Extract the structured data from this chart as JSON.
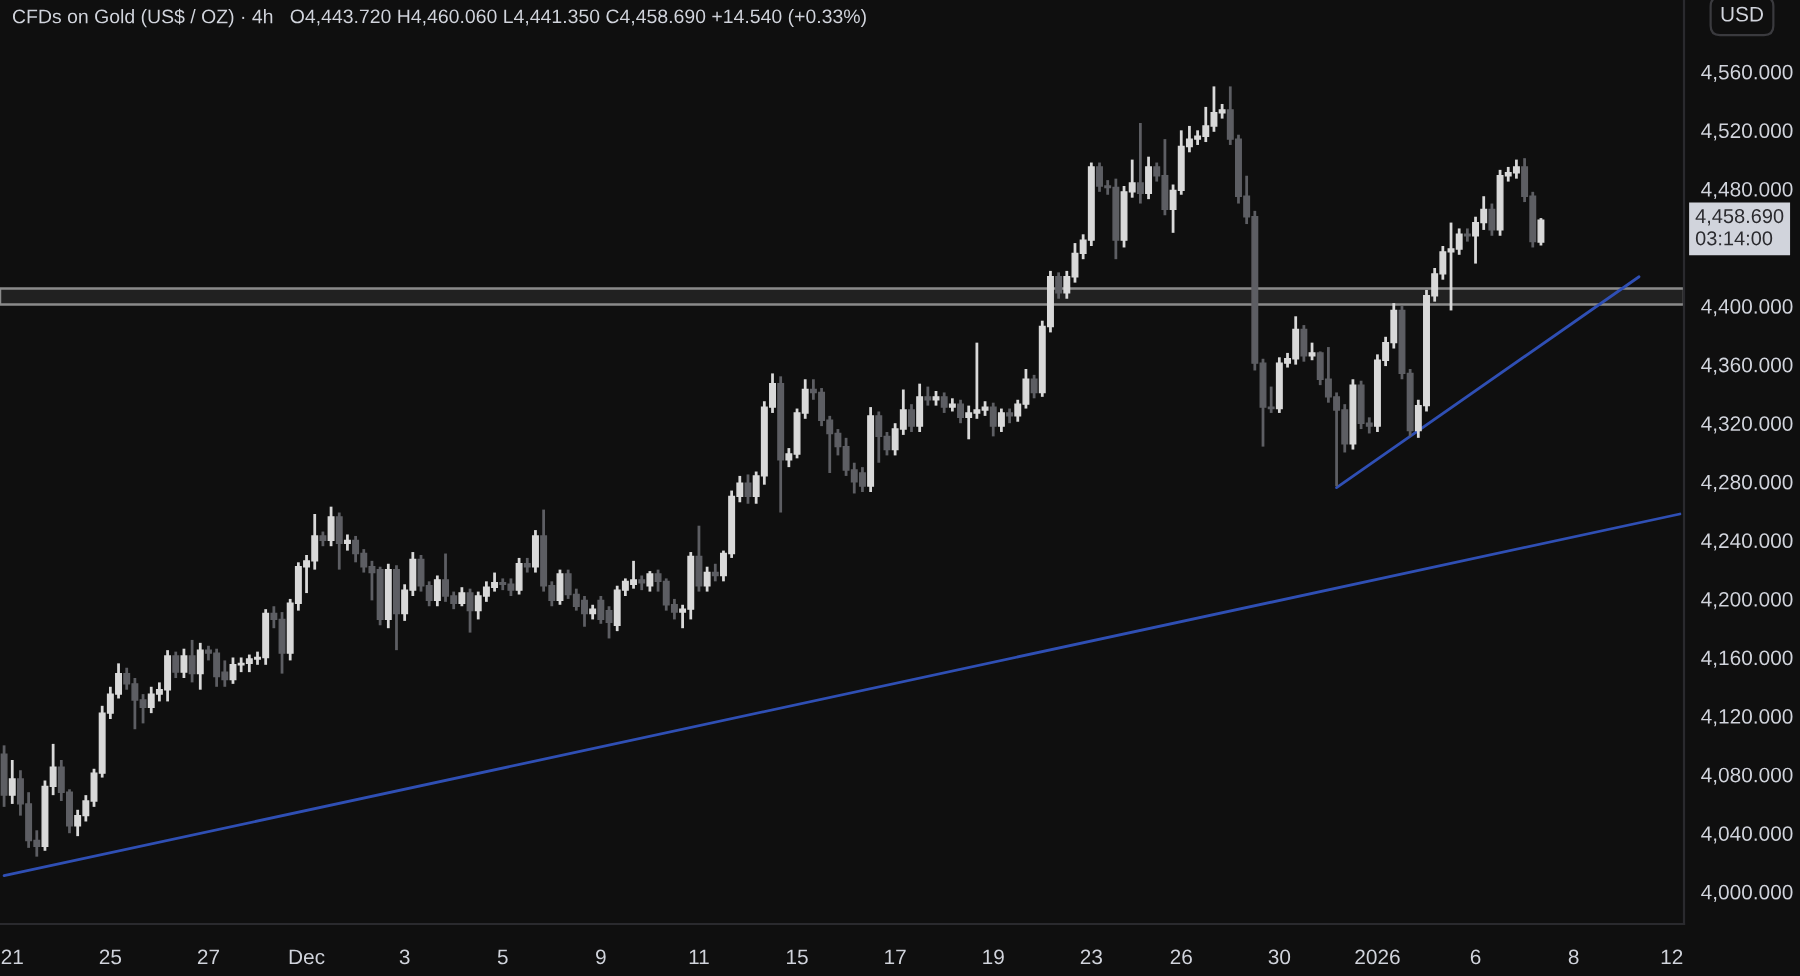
{
  "chart_data": {
    "type": "candlestick",
    "title": "CFDs on Gold (US$ / OZ) · 4h",
    "subtitle": "O4,443.720 H4,460.060 L4,441.350 C4,458.690 +14.540 (+0.33%)",
    "ylabel": "USD",
    "categories": [
      null,
      "21",
      null,
      null,
      null,
      null,
      null,
      null,
      null,
      null,
      null,
      null,
      null,
      "25",
      null,
      null,
      null,
      null,
      null,
      null,
      null,
      null,
      null,
      null,
      null,
      "27",
      null,
      null,
      null,
      null,
      null,
      null,
      null,
      null,
      null,
      null,
      null,
      "Dec",
      null,
      null,
      null,
      null,
      null,
      null,
      null,
      null,
      null,
      null,
      null,
      "3",
      null,
      null,
      null,
      null,
      null,
      null,
      null,
      null,
      null,
      null,
      null,
      "5",
      null,
      null,
      null,
      null,
      null,
      null,
      null,
      null,
      null,
      null,
      null,
      "9",
      null,
      null,
      null,
      null,
      null,
      null,
      null,
      null,
      null,
      null,
      null,
      "11",
      null,
      null,
      null,
      null,
      null,
      null,
      null,
      null,
      null,
      null,
      null,
      "15",
      null,
      null,
      null,
      null,
      null,
      null,
      null,
      null,
      null,
      null,
      null,
      "17",
      null,
      null,
      null,
      null,
      null,
      null,
      null,
      null,
      null,
      null,
      null,
      "19",
      null,
      null,
      null,
      null,
      null,
      null,
      null,
      null,
      null,
      null,
      null,
      "23",
      null,
      null,
      null,
      null,
      null,
      null,
      null,
      null,
      null,
      null,
      "26",
      null,
      null,
      null,
      null,
      null,
      null,
      null,
      null,
      null,
      null,
      null,
      "30",
      null,
      null,
      null,
      null,
      null,
      null,
      null,
      null,
      null,
      null,
      null,
      "2026",
      null,
      null,
      null,
      null,
      null,
      null,
      null,
      null,
      null,
      null,
      null,
      "6",
      null,
      null,
      null,
      null,
      null,
      null,
      null,
      null,
      null,
      null,
      null,
      "8",
      null,
      null,
      null,
      null,
      null,
      null,
      null,
      null,
      null,
      null,
      null,
      "12",
      null
    ],
    "ohlc": [
      [
        4094,
        4100,
        4058,
        4066
      ],
      [
        4066,
        4090,
        4060,
        4077
      ],
      [
        4077,
        4083,
        4052,
        4060
      ],
      [
        4060,
        4068,
        4030,
        4035
      ],
      [
        4035,
        4042,
        4024,
        4031
      ],
      [
        4031,
        4076,
        4028,
        4072
      ],
      [
        4072,
        4101,
        4066,
        4085
      ],
      [
        4085,
        4090,
        4062,
        4068
      ],
      [
        4068,
        4070,
        4040,
        4045
      ],
      [
        4045,
        4056,
        4038,
        4052
      ],
      [
        4052,
        4066,
        4048,
        4062
      ],
      [
        4062,
        4084,
        4058,
        4081
      ],
      [
        4081,
        4127,
        4078,
        4122
      ],
      [
        4122,
        4140,
        4118,
        4135
      ],
      [
        4135,
        4156,
        4132,
        4149
      ],
      [
        4149,
        4153,
        4138,
        4142
      ],
      [
        4142,
        4146,
        4111,
        4131
      ],
      [
        4131,
        4135,
        4115,
        4126
      ],
      [
        4126,
        4140,
        4122,
        4135
      ],
      [
        4135,
        4143,
        4130,
        4138
      ],
      [
        4138,
        4165,
        4130,
        4161
      ],
      [
        4161,
        4164,
        4146,
        4150
      ],
      [
        4150,
        4166,
        4146,
        4161
      ],
      [
        4161,
        4172,
        4143,
        4149
      ],
      [
        4149,
        4170,
        4138,
        4165
      ],
      [
        4165,
        4168,
        4158,
        4163
      ],
      [
        4163,
        4166,
        4140,
        4147
      ],
      [
        4150,
        4158,
        4140,
        4145
      ],
      [
        4145,
        4160,
        4142,
        4155
      ],
      [
        4155,
        4160,
        4150,
        4156
      ],
      [
        4156,
        4162,
        4150,
        4159
      ],
      [
        4159,
        4164,
        4155,
        4160
      ],
      [
        4160,
        4193,
        4155,
        4190
      ],
      [
        4190,
        4195,
        4180,
        4186
      ],
      [
        4186,
        4191,
        4149,
        4163
      ],
      [
        4163,
        4200,
        4158,
        4197
      ],
      [
        4197,
        4225,
        4192,
        4222
      ],
      [
        4222,
        4230,
        4204,
        4226
      ],
      [
        4226,
        4258,
        4220,
        4243
      ],
      [
        4243,
        4246,
        4236,
        4240
      ],
      [
        4240,
        4263,
        4236,
        4256
      ],
      [
        4256,
        4259,
        4220,
        4238
      ],
      [
        4238,
        4244,
        4233,
        4240
      ],
      [
        4240,
        4243,
        4225,
        4231
      ],
      [
        4231,
        4234,
        4218,
        4222
      ],
      [
        4222,
        4226,
        4199,
        4218
      ],
      [
        4220,
        4222,
        4182,
        4186
      ],
      [
        4186,
        4224,
        4180,
        4220
      ],
      [
        4220,
        4223,
        4165,
        4190
      ],
      [
        4190,
        4210,
        4185,
        4206
      ],
      [
        4206,
        4232,
        4202,
        4227
      ],
      [
        4227,
        4230,
        4205,
        4209
      ],
      [
        4209,
        4212,
        4195,
        4199
      ],
      [
        4199,
        4216,
        4195,
        4213
      ],
      [
        4213,
        4231,
        4198,
        4202
      ],
      [
        4202,
        4205,
        4193,
        4197
      ],
      [
        4197,
        4208,
        4195,
        4204
      ],
      [
        4204,
        4207,
        4177,
        4192
      ],
      [
        4192,
        4205,
        4186,
        4202
      ],
      [
        4202,
        4212,
        4198,
        4208
      ],
      [
        4208,
        4218,
        4205,
        4211
      ],
      [
        4211,
        4214,
        4206,
        4210
      ],
      [
        4210,
        4214,
        4202,
        4206
      ],
      [
        4206,
        4228,
        4203,
        4224
      ],
      [
        4224,
        4228,
        4218,
        4222
      ],
      [
        4222,
        4247,
        4218,
        4243
      ],
      [
        4243,
        4261,
        4205,
        4209
      ],
      [
        4209,
        4212,
        4195,
        4199
      ],
      [
        4199,
        4220,
        4196,
        4217
      ],
      [
        4217,
        4220,
        4200,
        4203
      ],
      [
        4203,
        4207,
        4192,
        4195
      ],
      [
        4199,
        4202,
        4181,
        4190
      ],
      [
        4190,
        4196,
        4186,
        4193
      ],
      [
        4199,
        4202,
        4183,
        4186
      ],
      [
        4192,
        4195,
        4173,
        4184
      ],
      [
        4182,
        4209,
        4178,
        4206
      ],
      [
        4206,
        4214,
        4202,
        4212
      ],
      [
        4210,
        4226,
        4207,
        4213
      ],
      [
        4213,
        4216,
        4206,
        4211
      ],
      [
        4209,
        4219,
        4205,
        4217
      ],
      [
        4217,
        4220,
        4205,
        4212
      ],
      [
        4212,
        4214,
        4192,
        4196
      ],
      [
        4196,
        4200,
        4186,
        4191
      ],
      [
        4191,
        4196,
        4180,
        4193
      ],
      [
        4193,
        4232,
        4186,
        4229
      ],
      [
        4229,
        4250,
        4205,
        4209
      ],
      [
        4209,
        4222,
        4205,
        4218
      ],
      [
        4218,
        4224,
        4212,
        4216
      ],
      [
        4216,
        4233,
        4212,
        4231
      ],
      [
        4231,
        4274,
        4228,
        4270
      ],
      [
        4270,
        4284,
        4266,
        4279
      ],
      [
        4279,
        4285,
        4265,
        4270
      ],
      [
        4270,
        4287,
        4265,
        4284
      ],
      [
        4284,
        4335,
        4278,
        4331
      ],
      [
        4331,
        4354,
        4327,
        4347
      ],
      [
        4347,
        4352,
        4259,
        4295
      ],
      [
        4295,
        4303,
        4290,
        4299
      ],
      [
        4299,
        4330,
        4296,
        4327
      ],
      [
        4327,
        4350,
        4323,
        4343
      ],
      [
        4343,
        4350,
        4336,
        4341
      ],
      [
        4341,
        4344,
        4318,
        4322
      ],
      [
        4322,
        4325,
        4286,
        4313
      ],
      [
        4313,
        4316,
        4298,
        4304
      ],
      [
        4304,
        4310,
        4284,
        4288
      ],
      [
        4288,
        4293,
        4272,
        4280
      ],
      [
        4286,
        4290,
        4273,
        4277
      ],
      [
        4277,
        4331,
        4273,
        4325
      ],
      [
        4325,
        4328,
        4293,
        4311
      ],
      [
        4311,
        4314,
        4298,
        4302
      ],
      [
        4302,
        4320,
        4298,
        4316
      ],
      [
        4316,
        4343,
        4312,
        4329
      ],
      [
        4329,
        4333,
        4314,
        4318
      ],
      [
        4318,
        4347,
        4314,
        4338
      ],
      [
        4338,
        4345,
        4332,
        4336
      ],
      [
        4336,
        4342,
        4332,
        4338
      ],
      [
        4338,
        4341,
        4327,
        4331
      ],
      [
        4331,
        4337,
        4328,
        4333
      ],
      [
        4333,
        4336,
        4320,
        4324
      ],
      [
        4324,
        4332,
        4309,
        4327
      ],
      [
        4327,
        4375,
        4323,
        4329
      ],
      [
        4329,
        4335,
        4325,
        4331
      ],
      [
        4331,
        4334,
        4311,
        4318
      ],
      [
        4318,
        4330,
        4314,
        4327
      ],
      [
        4327,
        4330,
        4320,
        4325
      ],
      [
        4325,
        4336,
        4321,
        4333
      ],
      [
        4333,
        4357,
        4330,
        4350
      ],
      [
        4350,
        4353,
        4337,
        4341
      ],
      [
        4341,
        4390,
        4338,
        4386
      ],
      [
        4386,
        4424,
        4382,
        4420
      ],
      [
        4420,
        4423,
        4405,
        4409
      ],
      [
        4409,
        4424,
        4405,
        4420
      ],
      [
        4420,
        4443,
        4416,
        4436
      ],
      [
        4436,
        4449,
        4432,
        4445
      ],
      [
        4445,
        4498,
        4441,
        4495
      ],
      [
        4495,
        4498,
        4478,
        4482
      ],
      [
        4482,
        4486,
        4476,
        4481
      ],
      [
        4481,
        4487,
        4432,
        4445
      ],
      [
        4445,
        4482,
        4440,
        4478
      ],
      [
        4478,
        4500,
        4474,
        4484
      ],
      [
        4484,
        4525,
        4470,
        4477
      ],
      [
        4477,
        4502,
        4473,
        4495
      ],
      [
        4495,
        4498,
        4485,
        4489
      ],
      [
        4489,
        4514,
        4462,
        4466
      ],
      [
        4466,
        4483,
        4450,
        4479
      ],
      [
        4479,
        4520,
        4476,
        4509
      ],
      [
        4509,
        4523,
        4505,
        4514
      ],
      [
        4514,
        4520,
        4510,
        4516
      ],
      [
        4516,
        4536,
        4512,
        4523
      ],
      [
        4523,
        4550,
        4519,
        4532
      ],
      [
        4532,
        4538,
        4528,
        4534
      ],
      [
        4534,
        4550,
        4510,
        4514
      ],
      [
        4514,
        4517,
        4470,
        4475
      ],
      [
        4475,
        4489,
        4456,
        4461
      ],
      [
        4461,
        4465,
        4356,
        4361
      ],
      [
        4361,
        4364,
        4304,
        4331
      ],
      [
        4331,
        4345,
        4327,
        4330
      ],
      [
        4330,
        4365,
        4327,
        4361
      ],
      [
        4361,
        4368,
        4358,
        4364
      ],
      [
        4364,
        4393,
        4360,
        4384
      ],
      [
        4384,
        4387,
        4362,
        4366
      ],
      [
        4366,
        4375,
        4363,
        4368
      ],
      [
        4368,
        4369,
        4346,
        4350
      ],
      [
        4350,
        4372,
        4334,
        4338
      ],
      [
        4338,
        4341,
        4277,
        4329
      ],
      [
        4329,
        4333,
        4300,
        4306
      ],
      [
        4306,
        4350,
        4302,
        4346
      ],
      [
        4346,
        4349,
        4316,
        4320
      ],
      [
        4320,
        4324,
        4313,
        4318
      ],
      [
        4318,
        4367,
        4314,
        4363
      ],
      [
        4363,
        4379,
        4359,
        4375
      ],
      [
        4375,
        4402,
        4371,
        4397
      ],
      [
        4397,
        4400,
        4350,
        4354
      ],
      [
        4354,
        4357,
        4311,
        4315
      ],
      [
        4315,
        4336,
        4310,
        4332
      ],
      [
        4332,
        4411,
        4328,
        4407
      ],
      [
        4407,
        4426,
        4403,
        4422
      ],
      [
        4422,
        4441,
        4418,
        4437
      ],
      [
        4437,
        4457,
        4397,
        4439
      ],
      [
        4439,
        4453,
        4435,
        4449
      ],
      [
        4449,
        4453,
        4444,
        4448
      ],
      [
        4448,
        4461,
        4429,
        4457
      ],
      [
        4457,
        4475,
        4452,
        4466
      ],
      [
        4466,
        4470,
        4448,
        4452
      ],
      [
        4452,
        4493,
        4448,
        4489
      ],
      [
        4489,
        4495,
        4485,
        4491
      ],
      [
        4491,
        4500,
        4487,
        4495
      ],
      [
        4495,
        4501,
        4471,
        4475
      ],
      [
        4475,
        4478,
        4440,
        4444
      ],
      [
        4443.72,
        4460.06,
        4441.35,
        4458.69
      ],
      null,
      null,
      null,
      null,
      null,
      null,
      null,
      null,
      null,
      null,
      null,
      null,
      null,
      null,
      null,
      null,
      null
    ],
    "colors": [
      "#5d5e63",
      "#d9d9d9",
      "#5d5e63",
      "#5d5e63",
      "#5d5e63",
      "#d9d9d9",
      "#d9d9d9",
      "#5d5e63",
      "#5d5e63",
      "#d9d9d9",
      "#d9d9d9",
      "#d9d9d9",
      "#d9d9d9",
      "#d9d9d9",
      "#d9d9d9",
      "#5d5e63",
      "#5d5e63",
      "#5d5e63",
      "#d9d9d9",
      "#d9d9d9",
      "#d9d9d9",
      "#5d5e63",
      "#d9d9d9",
      "#5d5e63",
      "#d9d9d9",
      "#5d5e63",
      "#5d5e63",
      "#5d5e63",
      "#d9d9d9",
      "#d9d9d9",
      "#d9d9d9",
      "#d9d9d9",
      "#d9d9d9",
      "#5d5e63",
      "#5d5e63",
      "#d9d9d9",
      "#d9d9d9",
      "#d9d9d9",
      "#d9d9d9",
      "#5d5e63",
      "#d9d9d9",
      "#5d5e63",
      "#d9d9d9",
      "#5d5e63",
      "#5d5e63",
      "#5d5e63",
      "#5d5e63",
      "#d9d9d9",
      "#5d5e63",
      "#d9d9d9",
      "#d9d9d9",
      "#5d5e63",
      "#5d5e63",
      "#d9d9d9",
      "#5d5e63",
      "#5d5e63",
      "#d9d9d9",
      "#5d5e63",
      "#d9d9d9",
      "#d9d9d9",
      "#d9d9d9",
      "#5d5e63",
      "#5d5e63",
      "#d9d9d9",
      "#5d5e63",
      "#d9d9d9",
      "#5d5e63",
      "#5d5e63",
      "#d9d9d9",
      "#5d5e63",
      "#5d5e63",
      "#5d5e63",
      "#d9d9d9",
      "#5d5e63",
      "#5d5e63",
      "#d9d9d9",
      "#d9d9d9",
      "#d9d9d9",
      "#5d5e63",
      "#d9d9d9",
      "#5d5e63",
      "#5d5e63",
      "#5d5e63",
      "#d9d9d9",
      "#d9d9d9",
      "#5d5e63",
      "#d9d9d9",
      "#5d5e63",
      "#d9d9d9",
      "#d9d9d9",
      "#d9d9d9",
      "#5d5e63",
      "#d9d9d9",
      "#d9d9d9",
      "#d9d9d9",
      "#5d5e63",
      "#d9d9d9",
      "#d9d9d9",
      "#d9d9d9",
      "#5d5e63",
      "#5d5e63",
      "#5d5e63",
      "#5d5e63",
      "#5d5e63",
      "#5d5e63",
      "#5d5e63",
      "#d9d9d9",
      "#5d5e63",
      "#5d5e63",
      "#d9d9d9",
      "#d9d9d9",
      "#5d5e63",
      "#d9d9d9",
      "#5d5e63",
      "#d9d9d9",
      "#5d5e63",
      "#d9d9d9",
      "#5d5e63",
      "#d9d9d9",
      "#d9d9d9",
      "#d9d9d9",
      "#5d5e63",
      "#d9d9d9",
      "#5d5e63",
      "#d9d9d9",
      "#d9d9d9",
      "#5d5e63",
      "#d9d9d9",
      "#d9d9d9",
      "#5d5e63",
      "#d9d9d9",
      "#d9d9d9",
      "#d9d9d9",
      "#d9d9d9",
      "#5d5e63",
      "#5d5e63",
      "#5d5e63",
      "#d9d9d9",
      "#d9d9d9",
      "#5d5e63",
      "#d9d9d9",
      "#5d5e63",
      "#5d5e63",
      "#d9d9d9",
      "#d9d9d9",
      "#d9d9d9",
      "#d9d9d9",
      "#d9d9d9",
      "#d9d9d9",
      "#d9d9d9",
      "#5d5e63",
      "#5d5e63",
      "#5d5e63",
      "#5d5e63",
      "#5d5e63",
      "#5d5e63",
      "#d9d9d9",
      "#d9d9d9",
      "#d9d9d9",
      "#5d5e63",
      "#d9d9d9",
      "#5d5e63",
      "#5d5e63",
      "#5d5e63",
      "#5d5e63",
      "#d9d9d9",
      "#5d5e63",
      "#5d5e63",
      "#d9d9d9",
      "#d9d9d9",
      "#d9d9d9",
      "#5d5e63",
      "#5d5e63",
      "#d9d9d9",
      "#d9d9d9",
      "#d9d9d9",
      "#d9d9d9",
      "#d9d9d9",
      "#d9d9d9",
      "#5d5e63",
      "#d9d9d9",
      "#d9d9d9",
      "#5d5e63",
      "#d9d9d9",
      "#d9d9d9",
      "#d9d9d9",
      "#5d5e63",
      "#5d5e63",
      "#d9d9d9",
      null,
      null,
      null,
      null,
      null,
      null,
      null,
      null,
      null,
      null,
      null,
      null,
      null,
      null,
      null,
      null,
      null
    ],
    "series": [
      {
        "type": "line",
        "color": "#2f4fb4",
        "values": [
          4011,
          null,
          null,
          null,
          null,
          null,
          null,
          null,
          null,
          null,
          null,
          null,
          null,
          null,
          null,
          null,
          null,
          null,
          null,
          null,
          null,
          null,
          null,
          null,
          null,
          null,
          null,
          null,
          null,
          null,
          null,
          null,
          null,
          null,
          null,
          null,
          null,
          null,
          null,
          null,
          null,
          null,
          null,
          null,
          null,
          null,
          null,
          null,
          null,
          null,
          null,
          null,
          null,
          null,
          null,
          null,
          null,
          null,
          null,
          null,
          null,
          null,
          null,
          null,
          null,
          null,
          null,
          null,
          null,
          null,
          null,
          null,
          null,
          null,
          null,
          null,
          null,
          null,
          null,
          null,
          null,
          null,
          null,
          null,
          null,
          null,
          null,
          null,
          null,
          null,
          null,
          null,
          null,
          null,
          null,
          null,
          null,
          null,
          null,
          null,
          null,
          null,
          null,
          null,
          null,
          null,
          null,
          null,
          null,
          null,
          null,
          null,
          null,
          null,
          null,
          null,
          null,
          null,
          null,
          null,
          null,
          null,
          null,
          null,
          null,
          null,
          null,
          null,
          null,
          null,
          null,
          null,
          null,
          null,
          null,
          null,
          null,
          null,
          null,
          null,
          null,
          null,
          null,
          null,
          null,
          null,
          null,
          null,
          null,
          null,
          null,
          null,
          null,
          null,
          null,
          null,
          null,
          null,
          null,
          null,
          null,
          null,
          null,
          null,
          null,
          null,
          null,
          null,
          null,
          null,
          null,
          null,
          null,
          null,
          null,
          null,
          null,
          null,
          null,
          null,
          null,
          null,
          null,
          null,
          null,
          null,
          null,
          null,
          null,
          null,
          null,
          null,
          null,
          null,
          null,
          null,
          null,
          null,
          null,
          null,
          null,
          null,
          null,
          null,
          null,
          4258
        ]
      },
      {
        "type": "line",
        "color": "#2f4fb4",
        "values": [
          null,
          null,
          null,
          null,
          null,
          null,
          null,
          null,
          null,
          null,
          null,
          null,
          null,
          null,
          null,
          null,
          null,
          null,
          null,
          null,
          null,
          null,
          null,
          null,
          null,
          null,
          null,
          null,
          null,
          null,
          null,
          null,
          null,
          null,
          null,
          null,
          null,
          null,
          null,
          null,
          null,
          null,
          null,
          null,
          null,
          null,
          null,
          null,
          null,
          null,
          null,
          null,
          null,
          null,
          null,
          null,
          null,
          null,
          null,
          null,
          null,
          null,
          null,
          null,
          null,
          null,
          null,
          null,
          null,
          null,
          null,
          null,
          null,
          null,
          null,
          null,
          null,
          null,
          null,
          null,
          null,
          null,
          null,
          null,
          null,
          null,
          null,
          null,
          null,
          null,
          null,
          null,
          null,
          null,
          null,
          null,
          null,
          null,
          null,
          null,
          null,
          null,
          null,
          null,
          null,
          null,
          null,
          null,
          null,
          null,
          null,
          null,
          null,
          null,
          null,
          null,
          null,
          null,
          null,
          null,
          null,
          null,
          null,
          null,
          null,
          null,
          null,
          null,
          null,
          null,
          null,
          null,
          null,
          null,
          null,
          null,
          null,
          null,
          null,
          null,
          null,
          null,
          null,
          null,
          null,
          null,
          null,
          null,
          null,
          null,
          null,
          null,
          null,
          null,
          null,
          null,
          null,
          null,
          null,
          null,
          null,
          null,
          null,
          4276,
          null,
          null,
          null,
          null,
          null,
          null,
          null,
          null,
          null,
          null,
          null,
          null,
          null,
          null,
          null,
          null,
          null,
          null,
          null,
          null,
          null,
          null,
          null,
          null,
          null,
          null,
          null,
          null,
          null,
          null,
          null,
          null,
          null,
          null,
          null,
          null,
          4420,
          null,
          null,
          null,
          null,
          null
        ]
      }
    ],
    "bands": [
      {
        "axis": "y",
        "from": 4401,
        "to": 4412,
        "color": "#8a8a8a"
      }
    ],
    "annotations": [
      "4,458.690\n03:14:00"
    ],
    "ylim": [
      3978,
      4609
    ],
    "yticks": [
      {
        "value": 4000,
        "label": "4,000.000"
      },
      {
        "value": 4040,
        "label": "4,040.000"
      },
      {
        "value": 4080,
        "label": "4,080.000"
      },
      {
        "value": 4120,
        "label": "4,120.000"
      },
      {
        "value": 4160,
        "label": "4,160.000"
      },
      {
        "value": 4200,
        "label": "4,200.000"
      },
      {
        "value": 4240,
        "label": "4,240.000"
      },
      {
        "value": 4280,
        "label": "4,280.000"
      },
      {
        "value": 4320,
        "label": "4,320.000"
      },
      {
        "value": 4360,
        "label": "4,360.000"
      },
      {
        "value": 4400,
        "label": "4,400.000"
      },
      {
        "value": 4480,
        "label": "4,480.000"
      },
      {
        "value": 4520,
        "label": "4,520.000"
      },
      {
        "value": 4560,
        "label": "4,560.000"
      }
    ]
  }
}
